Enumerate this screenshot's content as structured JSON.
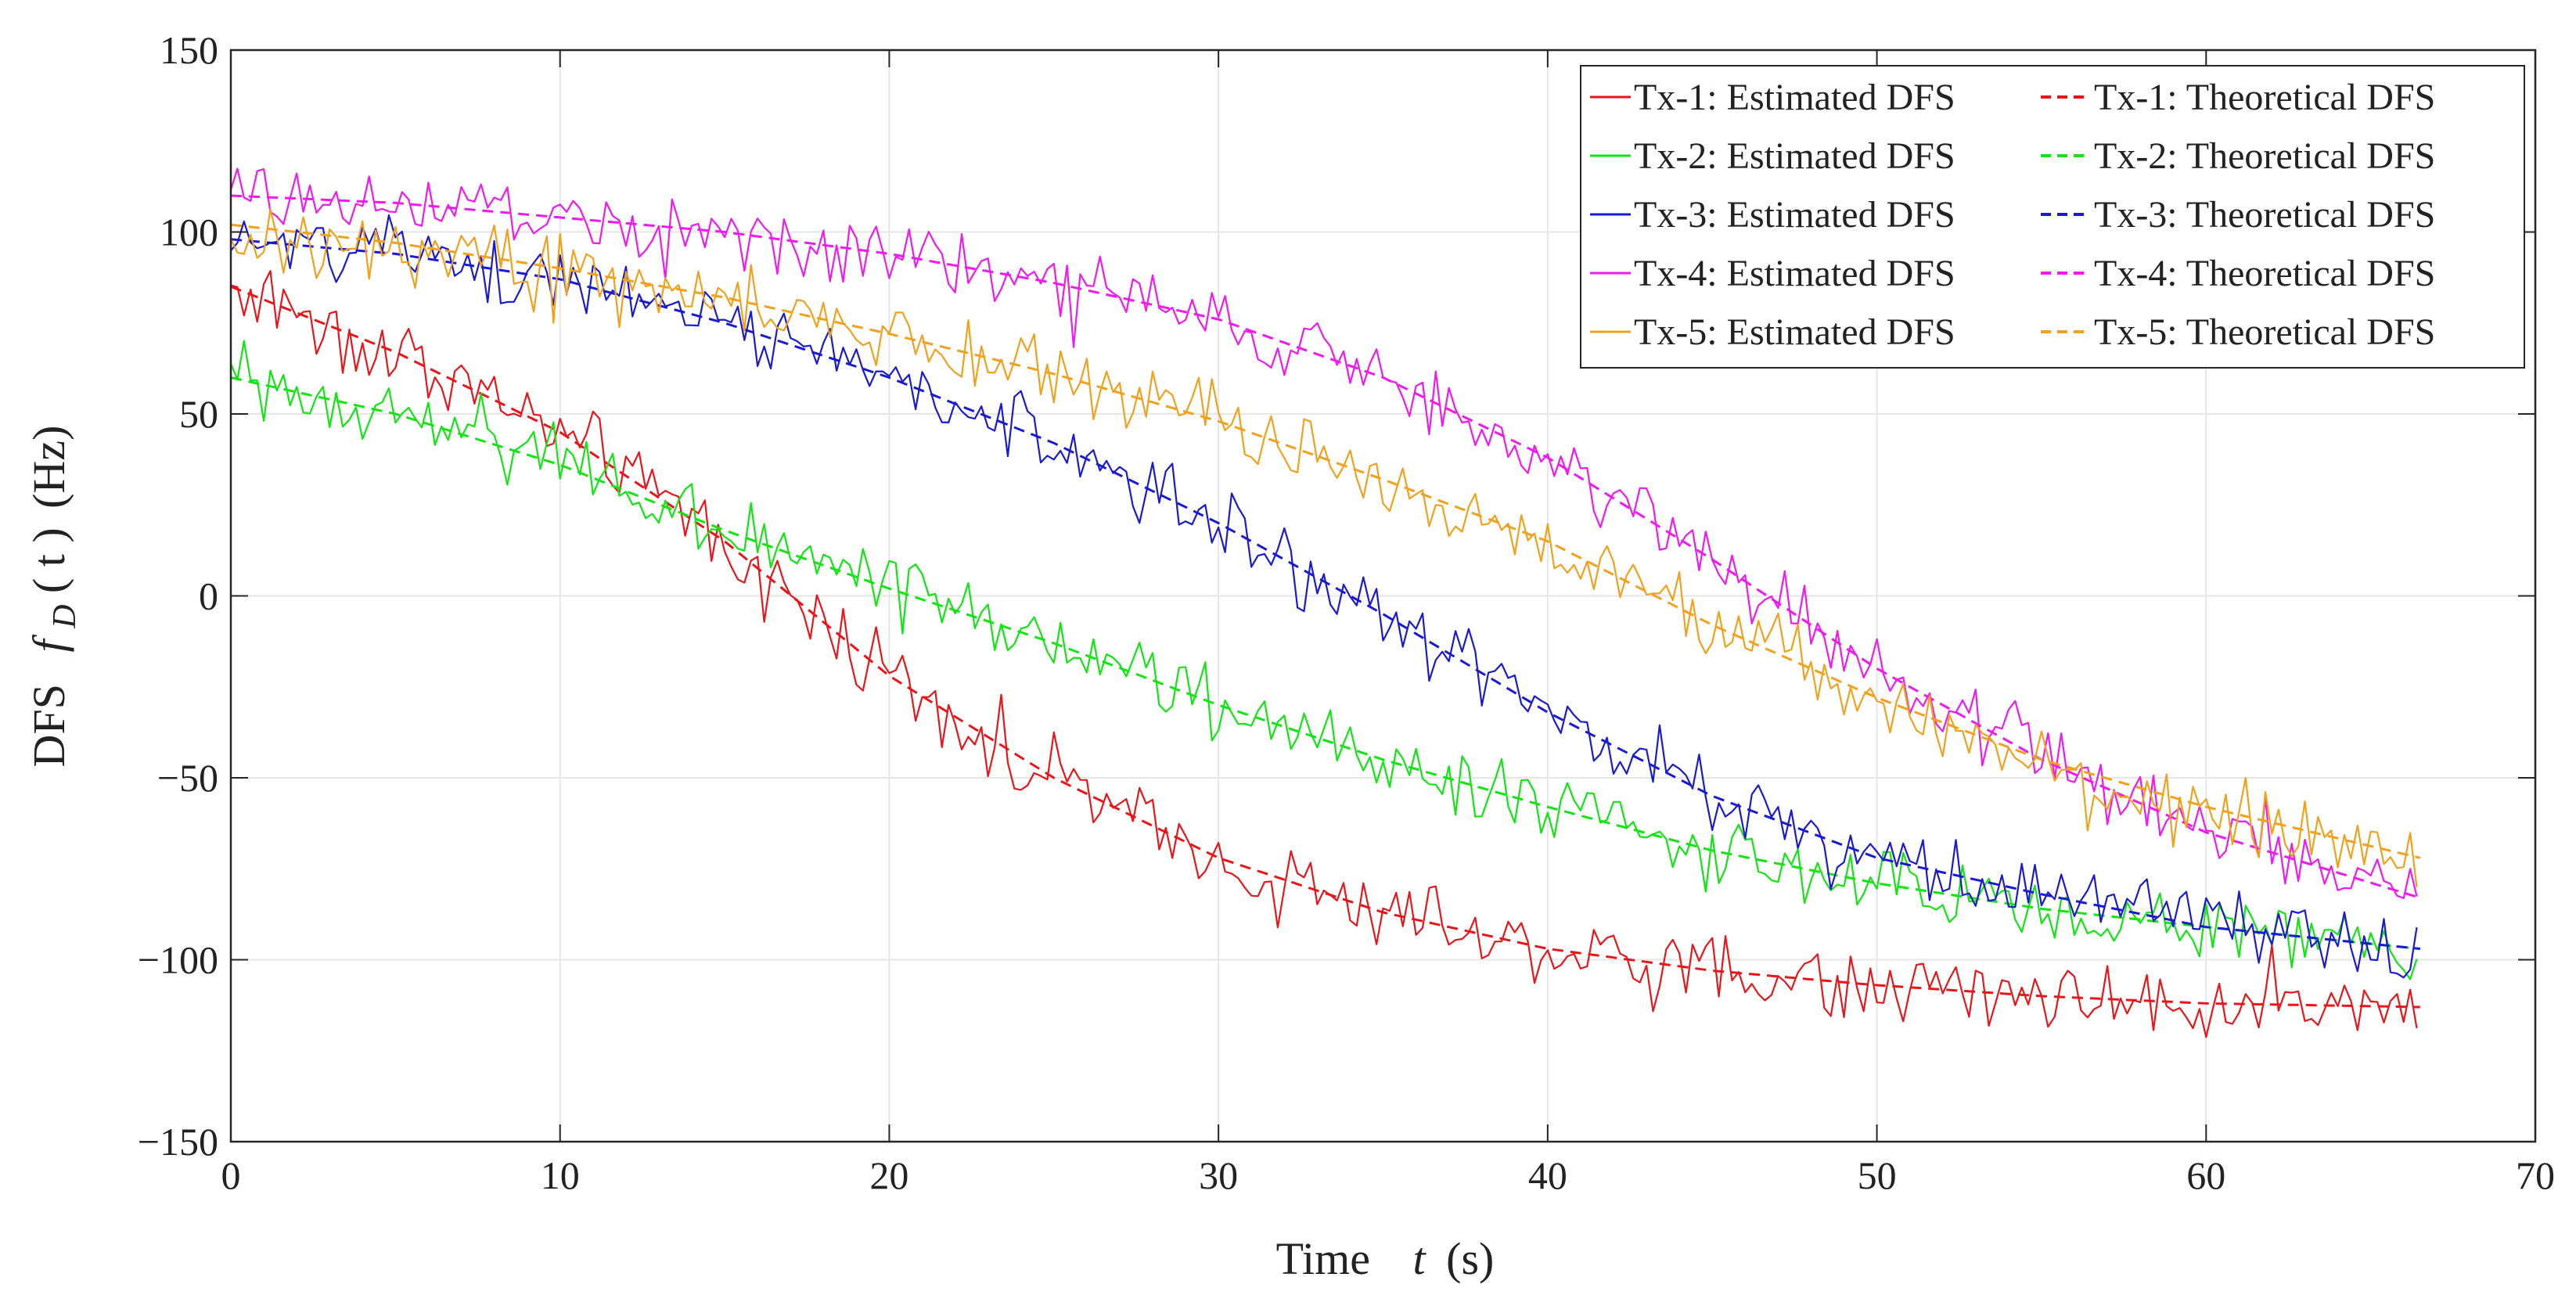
{
  "chart_data": {
    "type": "line",
    "title": "",
    "xlabel": {
      "prefix": "Time",
      "symbol": "t",
      "unit": "(s)"
    },
    "ylabel": {
      "prefix": "DFS",
      "symbol": "f",
      "subscript": "D",
      "arg": "( t )",
      "unit": "(Hz)"
    },
    "xlim": [
      0,
      70
    ],
    "ylim": [
      -150,
      150
    ],
    "x_ticks": [
      0,
      10,
      20,
      30,
      40,
      50,
      60,
      70
    ],
    "x_tick_labels": [
      "0",
      "10",
      "20",
      "30",
      "40",
      "50",
      "60",
      "70"
    ],
    "y_ticks": [
      -150,
      -100,
      -50,
      0,
      50,
      100,
      150
    ],
    "y_tick_labels": [
      "−150",
      "−100",
      "−50",
      "0",
      "50",
      "100",
      "150"
    ],
    "grid": true,
    "legend_position": "top-right",
    "t_end": 66.5,
    "sample_step": 0.2,
    "series": [
      {
        "name": "Tx-1",
        "estimated_label": "Tx-1: Estimated DFS",
        "theoretical_label": "Tx-1: Theoretical DFS",
        "color": "#e8161b",
        "theoretical": {
          "t": [
            0,
            5,
            10,
            15,
            20,
            25,
            30,
            35,
            40,
            45,
            50,
            55,
            60,
            66.5
          ],
          "v": [
            85,
            67,
            45,
            15,
            -22,
            -50,
            -72,
            -87,
            -97,
            -103,
            -107,
            -110,
            -112,
            -113
          ]
        }
      },
      {
        "name": "Tx-2",
        "estimated_label": "Tx-2: Estimated DFS",
        "theoretical_label": "Tx-2: Theoretical DFS",
        "color": "#13e414",
        "theoretical": {
          "t": [
            0,
            5,
            10,
            15,
            20,
            25,
            30,
            35,
            40,
            45,
            50,
            55,
            60,
            66.5
          ],
          "v": [
            60,
            50,
            36,
            18,
            2,
            -13,
            -30,
            -45,
            -58,
            -70,
            -79,
            -86,
            -91,
            -97
          ]
        }
      },
      {
        "name": "Tx-3",
        "estimated_label": "Tx-3: Estimated DFS",
        "theoretical_label": "Tx-3: Theoretical DFS",
        "color": "#1a1ad0",
        "theoretical": {
          "t": [
            0,
            5,
            10,
            15,
            20,
            25,
            30,
            35,
            40,
            45,
            50,
            55,
            60,
            66.5
          ],
          "v": [
            98,
            94,
            87,
            75,
            60,
            42,
            20,
            -5,
            -32,
            -55,
            -72,
            -82,
            -91,
            -97
          ]
        }
      },
      {
        "name": "Tx-4",
        "estimated_label": "Tx-4: Estimated DFS",
        "theoretical_label": "Tx-4: Theoretical DFS",
        "color": "#ee1aee",
        "theoretical": {
          "t": [
            0,
            5,
            10,
            15,
            20,
            25,
            30,
            35,
            40,
            45,
            50,
            55,
            60,
            66.5
          ],
          "v": [
            110,
            108,
            104,
            100,
            94,
            86,
            76,
            60,
            38,
            10,
            -20,
            -45,
            -65,
            -83
          ]
        }
      },
      {
        "name": "Tx-5",
        "estimated_label": "Tx-5: Estimated DFS",
        "theoretical_label": "Tx-5: Theoretical DFS",
        "color": "#f0a11d",
        "theoretical": {
          "t": [
            0,
            5,
            10,
            15,
            20,
            25,
            30,
            35,
            40,
            45,
            50,
            55,
            60,
            66.5
          ],
          "v": [
            102,
            97,
            90,
            82,
            72,
            61,
            48,
            32,
            15,
            -8,
            -28,
            -45,
            -58,
            -72
          ]
        }
      }
    ]
  }
}
